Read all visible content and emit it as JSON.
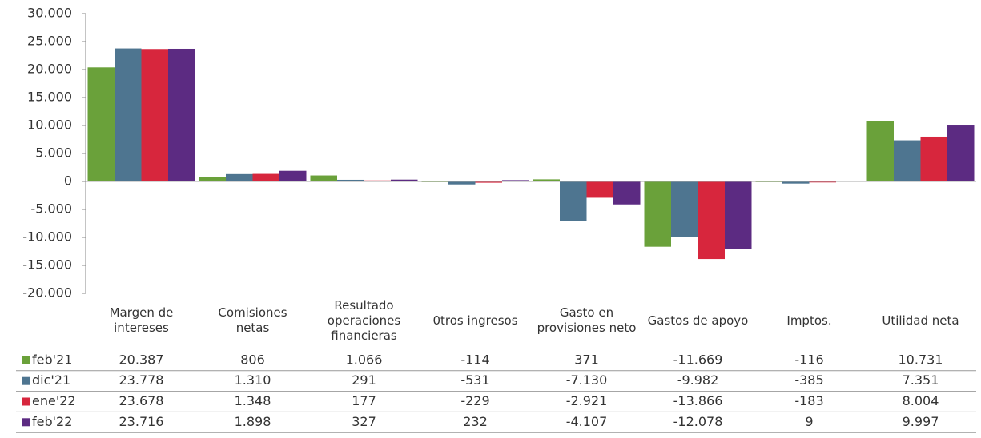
{
  "chart_data": {
    "type": "bar",
    "categories": [
      "Margen de intereses",
      "Comisiones netas",
      "Resultado operaciones financieras",
      "0tros ingresos",
      "Gasto en provisiones neto",
      "Gastos de apoyo",
      "Imptos.",
      "Utilidad neta"
    ],
    "series": [
      {
        "name": "feb'21",
        "color": "#6aa13a",
        "values": [
          20387,
          806,
          1066,
          -114,
          371,
          -11669,
          -116,
          10731
        ],
        "value_labels": [
          "20.387",
          "806",
          "1.066",
          "-114",
          "371",
          "-11.669",
          "-116",
          "10.731"
        ]
      },
      {
        "name": "dic'21",
        "color": "#4e7590",
        "values": [
          23778,
          1310,
          291,
          -531,
          -7130,
          -9982,
          -385,
          7351
        ],
        "value_labels": [
          "23.778",
          "1.310",
          "291",
          "-531",
          "-7.130",
          "-9.982",
          "-385",
          "7.351"
        ]
      },
      {
        "name": "ene'22",
        "color": "#d7263d",
        "values": [
          23678,
          1348,
          177,
          -229,
          -2921,
          -13866,
          -183,
          8004
        ],
        "value_labels": [
          "23.678",
          "1.348",
          "177",
          "-229",
          "-2.921",
          "-13.866",
          "-183",
          "8.004"
        ]
      },
      {
        "name": "feb'22",
        "color": "#5c2b82",
        "values": [
          23716,
          1898,
          327,
          232,
          -4107,
          -12078,
          9,
          9997
        ],
        "value_labels": [
          "23.716",
          "1.898",
          "327",
          "232",
          "-4.107",
          "-12.078",
          "9",
          "9.997"
        ]
      }
    ],
    "ylim": [
      -20000,
      30000
    ],
    "yticks": [
      {
        "value": -20000,
        "label": "-20.000"
      },
      {
        "value": -15000,
        "label": "-15.000"
      },
      {
        "value": -10000,
        "label": "-10.000"
      },
      {
        "value": -5000,
        "label": "-5.000"
      },
      0,
      {
        "value": 5000,
        "label": "5.000"
      },
      {
        "value": 10000,
        "label": "10.000"
      },
      {
        "value": 15000,
        "label": "15.000"
      },
      {
        "value": 20000,
        "label": "20.000"
      },
      {
        "value": 25000,
        "label": "25.000"
      },
      {
        "value": 30000,
        "label": "30.000"
      }
    ]
  }
}
